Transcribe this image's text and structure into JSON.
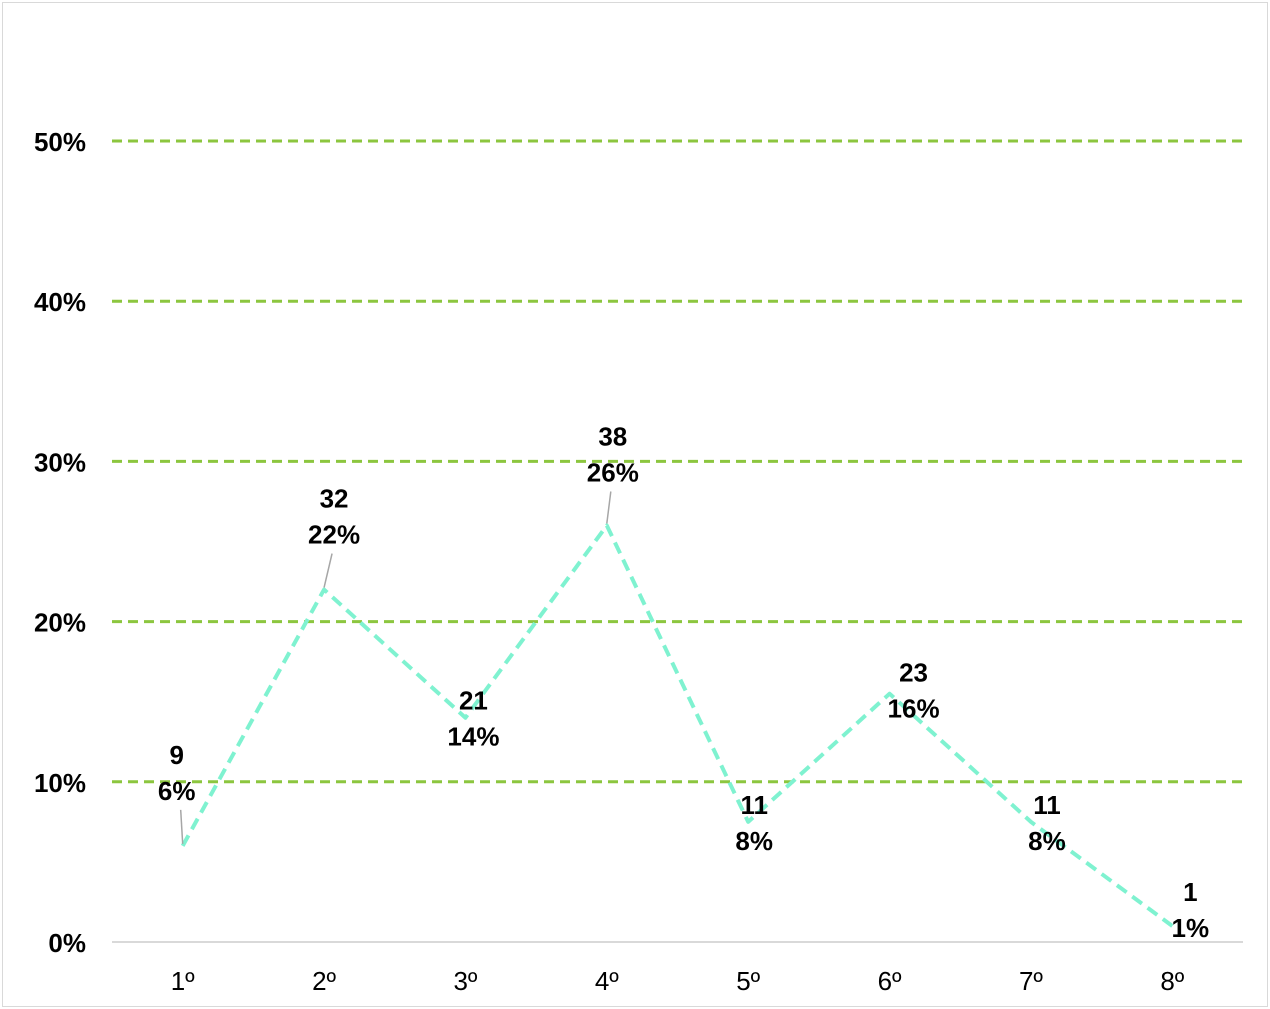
{
  "chart_data": {
    "type": "line",
    "title": "",
    "xlabel": "",
    "ylabel": "",
    "categories": [
      "1º",
      "2º",
      "3º",
      "4º",
      "5º",
      "6º",
      "7º",
      "8º"
    ],
    "series": [
      {
        "values": [
          0.06,
          0.22,
          0.14,
          0.26,
          0.075,
          0.155,
          0.075,
          0.01
        ],
        "counts": [
          "9",
          "32",
          "21",
          "38",
          "11",
          "23",
          "11",
          "1"
        ],
        "percent_labels": [
          "6%",
          "22%",
          "14%",
          "26%",
          "8%",
          "16%",
          "8%",
          "1%"
        ]
      }
    ],
    "ylim": [
      0,
      0.5
    ],
    "yticks": [
      "0%",
      "10%",
      "20%",
      "30%",
      "40%",
      "50%"
    ],
    "grid": true,
    "legend": "none",
    "colors": {
      "line": "#7ff2d0",
      "grid": "#8cc63f",
      "axis": "#d9d9d9",
      "leader": "#a6a6a6"
    }
  }
}
